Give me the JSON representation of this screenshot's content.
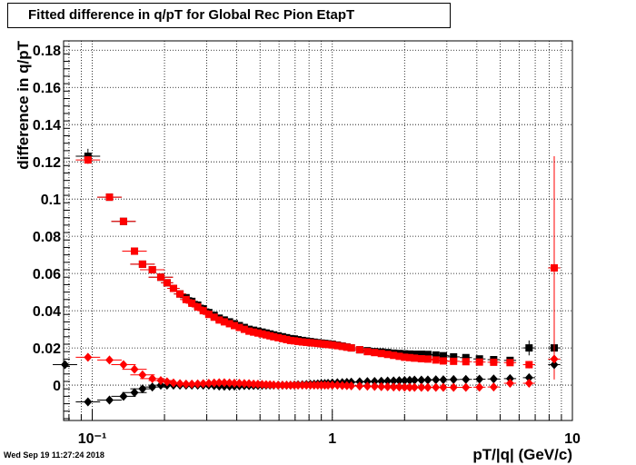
{
  "chart_data": {
    "type": "scatter",
    "title": "Fitted difference in q/pT for Global Rec Pion EtapT",
    "xlabel": "pT/|q| (GeV/c)",
    "ylabel": "difference in q/pT",
    "xscale": "log",
    "xlim": [
      0.076,
      10
    ],
    "ylim": [
      -0.019,
      0.185
    ],
    "x_tick_labels": [
      "10⁻¹",
      "1",
      "10"
    ],
    "y_tick_labels": [
      "0",
      "0.02",
      "0.04",
      "0.06",
      "0.08",
      "0.1",
      "0.12",
      "0.14",
      "0.16",
      "0.18"
    ],
    "grid": true,
    "series": [
      {
        "color": "#000000",
        "marker": "square",
        "x": [
          0.096,
          0.118,
          0.135,
          0.15,
          0.162,
          0.178,
          0.193,
          0.205,
          0.218,
          0.232,
          0.246,
          0.26,
          0.275,
          0.29,
          0.306,
          0.322,
          0.338,
          0.355,
          0.373,
          0.391,
          0.41,
          0.43,
          0.45,
          0.47,
          0.49,
          0.51,
          0.53,
          0.55,
          0.57,
          0.595,
          0.62,
          0.645,
          0.67,
          0.695,
          0.72,
          0.75,
          0.78,
          0.81,
          0.84,
          0.87,
          0.9,
          0.93,
          0.96,
          1.0,
          1.05,
          1.1,
          1.15,
          1.2,
          1.3,
          1.4,
          1.5,
          1.6,
          1.7,
          1.8,
          1.9,
          2.0,
          2.1,
          2.2,
          2.35,
          2.5,
          2.7,
          2.9,
          3.2,
          3.6,
          4.1,
          4.7,
          5.5,
          6.6,
          8.4
        ],
        "y": [
          0.123,
          0.101,
          0.088,
          0.072,
          0.065,
          0.062,
          0.058,
          0.055,
          0.052,
          0.049,
          0.047,
          0.045,
          0.043,
          0.041,
          0.039,
          0.0375,
          0.036,
          0.035,
          0.034,
          0.033,
          0.032,
          0.031,
          0.03,
          0.0295,
          0.029,
          0.0285,
          0.028,
          0.0275,
          0.027,
          0.0265,
          0.026,
          0.0255,
          0.025,
          0.0248,
          0.0244,
          0.024,
          0.0237,
          0.0234,
          0.0231,
          0.0228,
          0.0226,
          0.0224,
          0.0222,
          0.022,
          0.0215,
          0.021,
          0.0205,
          0.02,
          0.019,
          0.0185,
          0.018,
          0.0178,
          0.0175,
          0.0172,
          0.017,
          0.0168,
          0.0167,
          0.0166,
          0.0166,
          0.0165,
          0.0162,
          0.0158,
          0.0152,
          0.0148,
          0.0141,
          0.0137,
          0.0133,
          0.02,
          0.02
        ],
        "yerr": [
          0.004,
          0.001,
          0.001,
          0,
          0,
          0,
          0,
          0,
          0,
          0,
          0,
          0,
          0,
          0,
          0,
          0,
          0,
          0,
          0,
          0,
          0,
          0,
          0,
          0,
          0,
          0,
          0,
          0,
          0,
          0,
          0,
          0,
          0,
          0,
          0,
          0,
          0,
          0,
          0,
          0,
          0,
          0,
          0,
          0,
          0,
          0,
          0,
          0,
          0,
          0,
          0,
          0,
          0,
          0,
          0,
          0,
          0,
          0,
          0,
          0,
          0,
          0,
          0,
          0,
          0,
          0,
          0,
          0.004,
          0.015
        ]
      },
      {
        "color": "#ff0000",
        "marker": "square",
        "x": [
          0.096,
          0.118,
          0.135,
          0.15,
          0.162,
          0.178,
          0.193,
          0.205,
          0.218,
          0.232,
          0.246,
          0.26,
          0.275,
          0.29,
          0.306,
          0.322,
          0.338,
          0.355,
          0.373,
          0.391,
          0.41,
          0.43,
          0.45,
          0.47,
          0.49,
          0.51,
          0.53,
          0.55,
          0.57,
          0.595,
          0.62,
          0.645,
          0.67,
          0.695,
          0.72,
          0.75,
          0.78,
          0.81,
          0.84,
          0.87,
          0.9,
          0.93,
          0.96,
          1.0,
          1.05,
          1.1,
          1.15,
          1.2,
          1.3,
          1.4,
          1.5,
          1.6,
          1.7,
          1.8,
          1.9,
          2.0,
          2.1,
          2.2,
          2.35,
          2.5,
          2.7,
          2.9,
          3.2,
          3.6,
          4.1,
          4.7,
          5.5,
          6.6,
          8.4
        ],
        "y": [
          0.121,
          0.101,
          0.088,
          0.072,
          0.065,
          0.062,
          0.058,
          0.055,
          0.052,
          0.049,
          0.046,
          0.044,
          0.042,
          0.04,
          0.038,
          0.0365,
          0.035,
          0.034,
          0.033,
          0.032,
          0.031,
          0.03,
          0.029,
          0.0285,
          0.028,
          0.0275,
          0.027,
          0.0265,
          0.026,
          0.0255,
          0.025,
          0.0245,
          0.024,
          0.0238,
          0.0235,
          0.0232,
          0.023,
          0.0228,
          0.0226,
          0.0224,
          0.0222,
          0.022,
          0.0218,
          0.0216,
          0.0212,
          0.0208,
          0.0204,
          0.02,
          0.019,
          0.018,
          0.0175,
          0.017,
          0.0165,
          0.016,
          0.0155,
          0.015,
          0.0148,
          0.0145,
          0.0142,
          0.014,
          0.0135,
          0.013,
          0.0128,
          0.0126,
          0.0124,
          0.0123,
          0.0121,
          0.011,
          0.063
        ],
        "yerr": [
          0.002,
          0.001,
          0.001,
          0,
          0,
          0,
          0,
          0,
          0,
          0,
          0,
          0,
          0,
          0,
          0,
          0,
          0,
          0,
          0,
          0,
          0,
          0,
          0,
          0,
          0,
          0,
          0,
          0,
          0,
          0,
          0,
          0,
          0,
          0,
          0,
          0,
          0,
          0,
          0,
          0,
          0,
          0,
          0,
          0,
          0,
          0,
          0,
          0,
          0,
          0,
          0,
          0,
          0,
          0,
          0,
          0,
          0,
          0,
          0,
          0,
          0,
          0,
          0,
          0,
          0,
          0,
          0,
          0.002,
          0.06
        ]
      },
      {
        "color": "#000000",
        "marker": "diamond",
        "x": [
          0.077,
          0.096,
          0.118,
          0.135,
          0.15,
          0.162,
          0.178,
          0.193,
          0.205,
          0.218,
          0.232,
          0.246,
          0.26,
          0.275,
          0.29,
          0.306,
          0.322,
          0.338,
          0.355,
          0.373,
          0.391,
          0.41,
          0.43,
          0.45,
          0.47,
          0.49,
          0.51,
          0.53,
          0.55,
          0.57,
          0.595,
          0.62,
          0.645,
          0.67,
          0.695,
          0.72,
          0.75,
          0.78,
          0.81,
          0.84,
          0.87,
          0.9,
          0.93,
          0.96,
          1.0,
          1.05,
          1.1,
          1.15,
          1.2,
          1.3,
          1.4,
          1.5,
          1.6,
          1.7,
          1.8,
          1.9,
          2.0,
          2.1,
          2.2,
          2.35,
          2.5,
          2.7,
          2.9,
          3.2,
          3.6,
          4.1,
          4.7,
          5.5,
          6.6,
          8.4
        ],
        "y": [
          0.011,
          -0.009,
          -0.008,
          -0.006,
          -0.004,
          -0.002,
          -0.001,
          0.0,
          0.0,
          0.0,
          0.0,
          0.0,
          0.0,
          0.0,
          0.0,
          0.0,
          -0.0003,
          -0.0005,
          -0.0006,
          -0.0006,
          -0.0005,
          -0.0004,
          -0.0003,
          -0.0003,
          -0.0002,
          -0.0002,
          -0.0001,
          0.0,
          0.0,
          0.0,
          0.0,
          0.0,
          0.0,
          0.0,
          0.0001,
          0.0002,
          0.0003,
          0.0004,
          0.0005,
          0.0006,
          0.0007,
          0.0008,
          0.0009,
          0.001,
          0.0012,
          0.0013,
          0.0014,
          0.0015,
          0.0016,
          0.0018,
          0.0019,
          0.002,
          0.0021,
          0.0022,
          0.0023,
          0.0024,
          0.0025,
          0.0026,
          0.0027,
          0.0027,
          0.0028,
          0.0029,
          0.0029,
          0.003,
          0.0031,
          0.0032,
          0.0033,
          0.0035,
          0.004,
          0.011
        ]
      },
      {
        "color": "#ff0000",
        "marker": "diamond",
        "x": [
          0.096,
          0.118,
          0.135,
          0.15,
          0.162,
          0.178,
          0.193,
          0.205,
          0.218,
          0.232,
          0.246,
          0.26,
          0.275,
          0.29,
          0.306,
          0.322,
          0.338,
          0.355,
          0.373,
          0.391,
          0.41,
          0.43,
          0.45,
          0.47,
          0.49,
          0.51,
          0.53,
          0.55,
          0.57,
          0.595,
          0.62,
          0.645,
          0.67,
          0.695,
          0.72,
          0.75,
          0.78,
          0.81,
          0.84,
          0.87,
          0.9,
          0.93,
          0.96,
          1.0,
          1.05,
          1.1,
          1.15,
          1.2,
          1.3,
          1.4,
          1.5,
          1.6,
          1.7,
          1.8,
          1.9,
          2.0,
          2.1,
          2.2,
          2.35,
          2.5,
          2.7,
          2.9,
          3.2,
          3.6,
          4.1,
          4.7,
          5.5,
          6.6,
          8.4
        ],
        "y": [
          0.015,
          0.0135,
          0.011,
          0.0085,
          0.0055,
          0.0035,
          0.0025,
          0.0018,
          0.0012,
          0.0008,
          0.0006,
          0.0006,
          0.0007,
          0.0008,
          0.001,
          0.0012,
          0.0013,
          0.0013,
          0.0012,
          0.0011,
          0.001,
          0.0009,
          0.0008,
          0.0006,
          0.0005,
          0.0004,
          0.0003,
          0.0002,
          0.0001,
          0.0,
          0.0,
          0.0,
          0.0,
          0.0,
          0.0,
          0.0,
          0.0,
          0.0,
          0.0,
          0.0,
          0.0,
          0.0,
          0.0,
          0.0,
          0.0,
          -0.0002,
          -0.0003,
          -0.0004,
          -0.0005,
          -0.0006,
          -0.0007,
          -0.0008,
          -0.0009,
          -0.001,
          -0.001,
          -0.0011,
          -0.0012,
          -0.0012,
          -0.0012,
          -0.0012,
          -0.0012,
          -0.0012,
          -0.0012,
          -0.0012,
          -0.0011,
          -0.001,
          0.001,
          0.001,
          0.014
        ]
      }
    ]
  },
  "timestamp": "Wed Sep 19 11:27:24 2018"
}
